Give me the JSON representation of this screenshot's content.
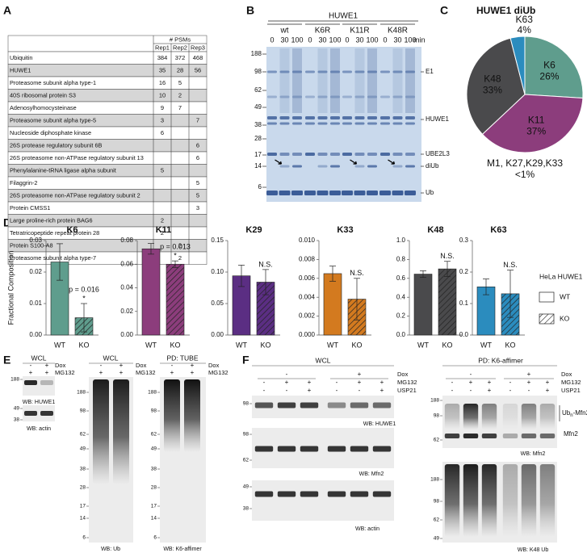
{
  "panel_labels": [
    "A",
    "B",
    "C",
    "D",
    "E",
    "F"
  ],
  "table": {
    "group_header": "# PSMs",
    "columns": [
      "Rep1",
      "Rep2",
      "Rep3"
    ],
    "rows": [
      [
        "Ubiquitin",
        384,
        372,
        468
      ],
      [
        "HUWE1",
        35,
        28,
        56
      ],
      [
        "Proteasome subunit alpha type-1",
        16,
        5,
        null
      ],
      [
        "40S ribosomal protein S3",
        10,
        2,
        null
      ],
      [
        "Adenosylhomocysteinase",
        9,
        7,
        null
      ],
      [
        "Proteasome subunit alpha type-5",
        3,
        null,
        7
      ],
      [
        "Nucleoside diphosphate kinase",
        6,
        null,
        null
      ],
      [
        "26S protease regulatory subunit 6B",
        null,
        null,
        6
      ],
      [
        "26S proteasome non-ATPase regulatory subunit 13",
        null,
        null,
        6
      ],
      [
        "Phenylalanine-tRNA ligase alpha subunit",
        5,
        null,
        null
      ],
      [
        "Filaggrin-2",
        null,
        null,
        5
      ],
      [
        "26S proteasome non-ATPase regulatory subunit 2",
        null,
        null,
        5
      ],
      [
        "Protein CMSS1",
        null,
        null,
        3
      ],
      [
        "Large proline-rich protein BAG6",
        2,
        null,
        null
      ],
      [
        "Tetratricopeptide repeat protein 28",
        2,
        null,
        null
      ],
      [
        "Protein S100-A8",
        null,
        2,
        null
      ],
      [
        "Proteasome subunit alpha type-7",
        null,
        2,
        null
      ]
    ]
  },
  "gel": {
    "title": "HUWE1",
    "lanes": [
      "wt",
      "K6R",
      "K11R",
      "K48R"
    ],
    "times": [
      0,
      30,
      100
    ],
    "time_unit": "min",
    "markers": [
      188,
      98,
      62,
      49,
      38,
      28,
      17,
      14,
      6
    ],
    "band_labels": [
      "E1",
      "HUWE1",
      "UBE2L3",
      "diUb",
      "Ub"
    ]
  },
  "chart_data": [
    {
      "type": "pie",
      "title": "HUWE1 diUb",
      "categories": [
        "K6",
        "K11",
        "K48",
        "K63"
      ],
      "values": [
        26,
        37,
        33,
        4
      ],
      "value_labels": [
        "26%",
        "37%",
        "33%",
        "4%"
      ],
      "colors": [
        "#5f9d8d",
        "#8c3d7c",
        "#4a4a4c",
        "#2b8cbe"
      ],
      "annotation": "M1, K27,K29,K33",
      "annotation_value": "<1%"
    },
    {
      "type": "bar",
      "title": "K6",
      "ylabel": "Fractional Composition",
      "categories": [
        "WT",
        "KO"
      ],
      "values": [
        0.0232,
        0.0055
      ],
      "errors": [
        0.0058,
        0.0045
      ],
      "hatched": [
        false,
        true
      ],
      "color": "#5f9d8d",
      "ylim": [
        0,
        0.03
      ],
      "yticks": [
        {
          "value": 0,
          "label": "0.00"
        },
        {
          "value": 0.01,
          "label": "0.01"
        },
        {
          "value": 0.02,
          "label": "0.02"
        },
        {
          "value": 0.03,
          "label": "0.03"
        }
      ],
      "annotations": [
        "p = 0.016",
        "*"
      ]
    },
    {
      "type": "bar",
      "title": "K11",
      "categories": [
        "WT",
        "KO"
      ],
      "values": [
        0.073,
        0.06
      ],
      "errors": [
        0.0045,
        0.0028
      ],
      "hatched": [
        false,
        true
      ],
      "color": "#8c3d7c",
      "ylim": [
        0,
        0.08
      ],
      "yticks": [
        {
          "value": 0,
          "label": "0.00"
        },
        {
          "value": 0.02,
          "label": "0.02"
        },
        {
          "value": 0.04,
          "label": "0.04"
        },
        {
          "value": 0.06,
          "label": "0.06"
        },
        {
          "value": 0.08,
          "label": "0.08"
        }
      ],
      "annotations": [
        "p = 0.013",
        "*"
      ]
    },
    {
      "type": "bar",
      "title": "K29",
      "categories": [
        "WT",
        "KO"
      ],
      "values": [
        0.094,
        0.084
      ],
      "errors": [
        0.017,
        0.02
      ],
      "hatched": [
        false,
        true
      ],
      "color": "#5b2e83",
      "ylim": [
        0,
        0.15
      ],
      "yticks": [
        {
          "value": 0,
          "label": "0.00"
        },
        {
          "value": 0.05,
          "label": "0.05"
        },
        {
          "value": 0.1,
          "label": "0.10"
        },
        {
          "value": 0.15,
          "label": "0.15"
        }
      ],
      "annotations": [
        "N.S."
      ]
    },
    {
      "type": "bar",
      "title": "K33",
      "categories": [
        "WT",
        "KO"
      ],
      "values": [
        0.0065,
        0.0038
      ],
      "errors": [
        0.0008,
        0.0022
      ],
      "hatched": [
        false,
        true
      ],
      "color": "#d37a1f",
      "ylim": [
        0,
        0.01
      ],
      "yticks": [
        {
          "value": 0,
          "label": "0.000"
        },
        {
          "value": 0.002,
          "label": "0.002"
        },
        {
          "value": 0.004,
          "label": "0.004"
        },
        {
          "value": 0.006,
          "label": "0.006"
        },
        {
          "value": 0.008,
          "label": "0.008"
        },
        {
          "value": 0.01,
          "label": "0.010"
        }
      ],
      "annotations": [
        "N.S."
      ]
    },
    {
      "type": "bar",
      "title": "K48",
      "categories": [
        "WT",
        "KO"
      ],
      "values": [
        0.645,
        0.7
      ],
      "errors": [
        0.035,
        0.08
      ],
      "hatched": [
        false,
        true
      ],
      "color": "#4a4a4c",
      "ylim": [
        0,
        1
      ],
      "yticks": [
        {
          "value": 0,
          "label": "0.0"
        },
        {
          "value": 0.2,
          "label": "0.2"
        },
        {
          "value": 0.4,
          "label": "0.4"
        },
        {
          "value": 0.6,
          "label": "0.6"
        },
        {
          "value": 0.8,
          "label": "0.8"
        },
        {
          "value": 1,
          "label": "1.0"
        }
      ],
      "annotations": [
        "N.S."
      ]
    },
    {
      "type": "bar",
      "title": "K63",
      "categories": [
        "WT",
        "KO"
      ],
      "values": [
        0.153,
        0.131
      ],
      "errors": [
        0.025,
        0.075
      ],
      "hatched": [
        false,
        true
      ],
      "color": "#2b8cbe",
      "ylim": [
        0,
        0.3
      ],
      "yticks": [
        {
          "value": 0,
          "label": "0.0"
        },
        {
          "value": 0.1,
          "label": "0.1"
        },
        {
          "value": 0.2,
          "label": "0.2"
        },
        {
          "value": 0.3,
          "label": "0.3"
        }
      ],
      "annotations": [
        "N.S."
      ]
    }
  ],
  "d_legend": {
    "title": "HeLa HUWE1",
    "entries": [
      "WT",
      "KO"
    ]
  },
  "panel_e": {
    "groups": [
      {
        "title": "WCL",
        "rows": [
          {
            "label": "Dox",
            "signs": [
              "-",
              "+"
            ]
          },
          {
            "label": "MG132",
            "signs": [
              "+",
              "+"
            ]
          }
        ],
        "blots": [
          {
            "markers": [
              188
            ],
            "caption": "WB: HUWE1"
          },
          {
            "markers": [
              49,
              38
            ],
            "caption": "WB: actin"
          }
        ]
      },
      {
        "title": "WCL",
        "rows": [
          {
            "label": "Dox",
            "signs": [
              "-",
              "+"
            ]
          },
          {
            "label": "MG132",
            "signs": [
              "+",
              "+"
            ]
          }
        ],
        "blots": [
          {
            "markers": [
              188,
              98,
              62,
              49,
              38,
              28,
              17,
              14,
              6
            ],
            "caption": "WB: Ub"
          }
        ]
      },
      {
        "title": "PD: TUBE",
        "rows": [
          {
            "label": "Dox",
            "signs": [
              "-",
              "+"
            ]
          },
          {
            "label": "MG132",
            "signs": [
              "+",
              "+"
            ]
          }
        ],
        "blots": [
          {
            "markers": [
              188,
              98,
              62,
              49,
              38,
              28,
              17,
              14,
              6
            ],
            "caption": "WB: K6-affimer"
          }
        ]
      }
    ]
  },
  "panel_f": {
    "groups": [
      {
        "title": "WCL",
        "rows": [
          {
            "label": "Dox",
            "signs": [
              "-",
              "+"
            ]
          },
          {
            "label": "MG132",
            "signs": [
              "-",
              "+",
              "+",
              "-",
              "+",
              "+"
            ]
          },
          {
            "label": "USP21",
            "signs": [
              "-",
              "-",
              "+",
              "-",
              "-",
              "+"
            ]
          }
        ],
        "blots": [
          {
            "markers": [
              98
            ],
            "caption": "WB: HUWE1"
          },
          {
            "markers": [
              98,
              62
            ],
            "caption": "WB: Mfn2"
          },
          {
            "markers": [
              49,
              38
            ],
            "caption": "WB: actin"
          }
        ]
      },
      {
        "title": "PD: K6-affimer",
        "rows": [
          {
            "label": "Dox",
            "signs": [
              "-",
              "+"
            ]
          },
          {
            "label": "MG132",
            "signs": [
              "-",
              "+",
              "+",
              "-",
              "+",
              "+"
            ]
          },
          {
            "label": "USP21",
            "signs": [
              "-",
              "-",
              "+",
              "-",
              "-",
              "+"
            ]
          }
        ],
        "blots": [
          {
            "markers": [
              188,
              98,
              62
            ],
            "caption": "WB: Mfn2",
            "band_labels": [
              [
                "Ub",
                "n",
                "-Mfn2"
              ],
              [
                "Mfn2"
              ]
            ]
          },
          {
            "markers": [
              188,
              98,
              62,
              49
            ],
            "caption": "WB: K48 Ub"
          }
        ]
      }
    ]
  }
}
